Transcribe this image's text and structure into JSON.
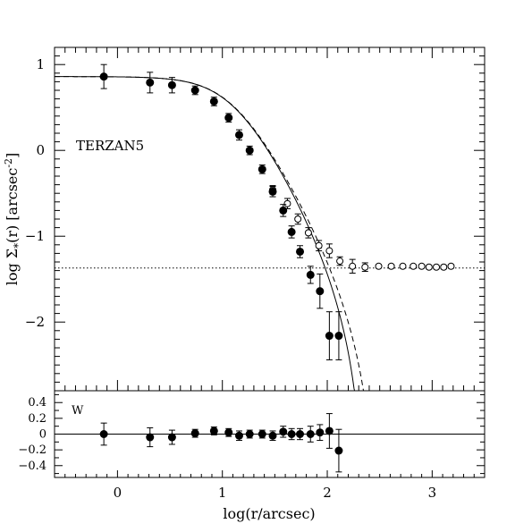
{
  "chart_data": [
    {
      "type": "scatter",
      "panel": "top",
      "title": "",
      "annotation": "TERZAN5",
      "xlabel": "log(r/arcsec)",
      "ylabel": "log Σ",
      "ylabel_subscript": "*",
      "ylabel_suffix": "(r) [arcsec",
      "ylabel_exponent": "-2",
      "ylabel_close": "]",
      "xlim": [
        -0.6,
        3.5
      ],
      "ylim": [
        -2.8,
        1.2
      ],
      "x_ticks": [
        0,
        1,
        2,
        3
      ],
      "y_ticks": [
        1,
        0,
        -1,
        -2
      ],
      "y_tick_labels": [
        "1",
        "0",
        "−1",
        "−2"
      ],
      "background_level": -1.37,
      "series": [
        {
          "style": "filled",
          "x": [
            -0.13,
            0.31,
            0.52,
            0.74,
            0.92,
            1.06,
            1.16,
            1.26,
            1.38,
            1.48,
            1.58,
            1.66,
            1.74,
            1.84,
            1.93,
            2.02,
            2.11
          ],
          "y": [
            0.86,
            0.79,
            0.76,
            0.7,
            0.57,
            0.38,
            0.18,
            0.0,
            -0.22,
            -0.48,
            -0.7,
            -0.95,
            -1.18,
            -1.45,
            -1.64,
            -2.16,
            -2.16
          ],
          "err": [
            0.14,
            0.12,
            0.09,
            0.05,
            0.05,
            0.05,
            0.06,
            0.05,
            0.05,
            0.06,
            0.07,
            0.07,
            0.07,
            0.1,
            0.2,
            0.28,
            0.28
          ]
        },
        {
          "style": "open",
          "x": [
            1.48,
            1.62,
            1.72,
            1.82,
            1.92,
            2.02,
            2.12,
            2.24,
            2.36,
            2.49,
            2.61,
            2.72,
            2.82,
            2.9,
            2.97,
            3.04,
            3.11,
            3.18
          ],
          "y": [
            -0.46,
            -0.62,
            -0.8,
            -0.96,
            -1.11,
            -1.17,
            -1.29,
            -1.35,
            -1.36,
            -1.35,
            -1.35,
            -1.35,
            -1.35,
            -1.35,
            -1.36,
            -1.36,
            -1.36,
            -1.35
          ],
          "err": [
            0.05,
            0.06,
            0.06,
            0.06,
            0.06,
            0.08,
            0.05,
            0.08,
            0.05,
            0.02,
            0.02,
            0.02,
            0.02,
            0.02,
            0.02,
            0.02,
            0.02,
            0.02
          ]
        }
      ]
    },
    {
      "type": "scatter",
      "panel": "bottom",
      "title": "",
      "annotation": "W",
      "xlabel": "log(r/arcsec)",
      "ylabel": "",
      "xlim": [
        -0.6,
        3.5
      ],
      "ylim": [
        -0.55,
        0.55
      ],
      "y_ticks": [
        0.4,
        0.2,
        0,
        -0.2,
        -0.4
      ],
      "y_tick_labels": [
        "0.4",
        "0.2",
        "0",
        "−0.2",
        "−0.4"
      ],
      "series": [
        {
          "style": "filled",
          "x": [
            -0.13,
            0.31,
            0.52,
            0.74,
            0.92,
            1.06,
            1.16,
            1.26,
            1.38,
            1.48,
            1.58,
            1.66,
            1.74,
            1.84,
            1.93,
            2.02,
            2.11
          ],
          "y": [
            0.0,
            -0.04,
            -0.04,
            0.01,
            0.04,
            0.02,
            -0.02,
            0.0,
            0.0,
            -0.02,
            0.03,
            0.0,
            0.0,
            0.0,
            0.02,
            0.04,
            -0.21
          ],
          "err": [
            0.14,
            0.12,
            0.09,
            0.05,
            0.05,
            0.05,
            0.06,
            0.05,
            0.05,
            0.06,
            0.07,
            0.07,
            0.07,
            0.1,
            0.1,
            0.22,
            0.27
          ]
        }
      ]
    }
  ]
}
